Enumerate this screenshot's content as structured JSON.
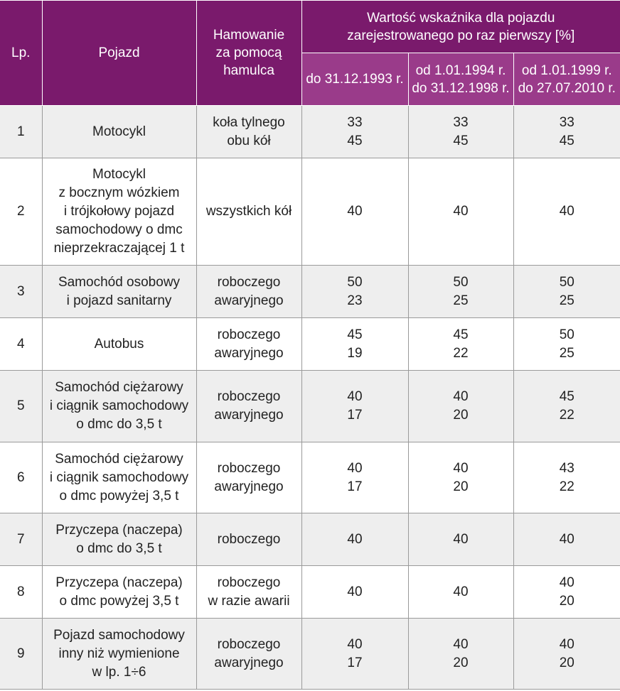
{
  "headers": {
    "lp": "Lp.",
    "pojazd": "Pojazd",
    "hamowanie": [
      "Hamowanie",
      "za pomocą",
      "hamulca"
    ],
    "group": [
      "Wartość wskaźnika dla pojazdu",
      "zarejestrowanego po raz pierwszy [%]"
    ],
    "period1": [
      "do 31.12.1993 r."
    ],
    "period2": [
      "od 1.01.1994 r.",
      "do 31.12.1998 r."
    ],
    "period3": [
      "od 1.01.1999 r.",
      "do 27.07.2010 r."
    ]
  },
  "rows": [
    {
      "lp": "1",
      "pojazd": [
        "Motocykl"
      ],
      "hamowanie": [
        "koła tylnego",
        "obu kół"
      ],
      "p1": [
        "33",
        "45"
      ],
      "p2": [
        "33",
        "45"
      ],
      "p3": [
        "33",
        "45"
      ]
    },
    {
      "lp": "2",
      "pojazd": [
        "Motocykl",
        "z bocznym wózkiem",
        "i trójkołowy pojazd",
        "samochodowy o dmc",
        "nieprzekraczającej 1 t"
      ],
      "hamowanie": [
        "wszystkich kół"
      ],
      "p1": [
        "40"
      ],
      "p2": [
        "40"
      ],
      "p3": [
        "40"
      ]
    },
    {
      "lp": "3",
      "pojazd": [
        "Samochód osobowy",
        "i pojazd sanitarny"
      ],
      "hamowanie": [
        "roboczego",
        "awaryjnego"
      ],
      "p1": [
        "50",
        "23"
      ],
      "p2": [
        "50",
        "25"
      ],
      "p3": [
        "50",
        "25"
      ]
    },
    {
      "lp": "4",
      "pojazd": [
        "Autobus"
      ],
      "hamowanie": [
        "roboczego",
        "awaryjnego"
      ],
      "p1": [
        "45",
        "19"
      ],
      "p2": [
        "45",
        "22"
      ],
      "p3": [
        "50",
        "25"
      ]
    },
    {
      "lp": "5",
      "pojazd": [
        "Samochód ciężarowy",
        "i ciągnik samochodowy",
        "o dmc do 3,5 t"
      ],
      "hamowanie": [
        "roboczego",
        "awaryjnego"
      ],
      "p1": [
        "40",
        "17"
      ],
      "p2": [
        "40",
        "20"
      ],
      "p3": [
        "45",
        "22"
      ]
    },
    {
      "lp": "6",
      "pojazd": [
        "Samochód ciężarowy",
        "i ciągnik samochodowy",
        "o dmc powyżej 3,5 t"
      ],
      "hamowanie": [
        "roboczego",
        "awaryjnego"
      ],
      "p1": [
        "40",
        "17"
      ],
      "p2": [
        "40",
        "20"
      ],
      "p3": [
        "43",
        "22"
      ]
    },
    {
      "lp": "7",
      "pojazd": [
        "Przyczepa (naczepa)",
        "o dmc do 3,5 t"
      ],
      "hamowanie": [
        "roboczego"
      ],
      "p1": [
        "40"
      ],
      "p2": [
        "40"
      ],
      "p3": [
        "40"
      ]
    },
    {
      "lp": "8",
      "pojazd": [
        "Przyczepa (naczepa)",
        "o dmc powyżej 3,5 t"
      ],
      "hamowanie": [
        "roboczego",
        "w razie awarii"
      ],
      "p1": [
        "40"
      ],
      "p2": [
        "40"
      ],
      "p3": [
        "40",
        "20"
      ]
    },
    {
      "lp": "9",
      "pojazd": [
        "Pojazd samochodowy",
        "inny niż wymienione",
        "w lp. 1÷6"
      ],
      "hamowanie": [
        "roboczego",
        "awaryjnego"
      ],
      "p1": [
        "40",
        "17"
      ],
      "p2": [
        "40",
        "20"
      ],
      "p3": [
        "40",
        "20"
      ]
    }
  ]
}
